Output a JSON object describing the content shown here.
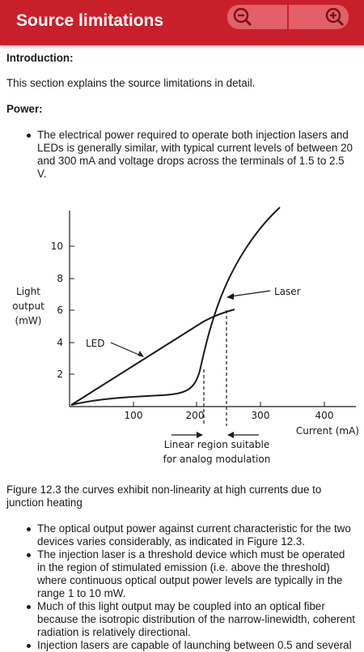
{
  "app_bar": {
    "title": "Source limitations",
    "zoom_out_icon": "zoom-out-magnifier",
    "zoom_in_icon": "zoom-in-magnifier",
    "bar_color": "#c8202a"
  },
  "intro": {
    "heading": "Introduction:",
    "text": "This section explains the source limitations in detail."
  },
  "power": {
    "heading": "Power:",
    "bullet": "The electrical power required to operate both injection lasers and LEDs is generally similar, with typical current levels of between 20 and 300 mA and voltage drops across the terminals of 1.5 to 2.5 V."
  },
  "figure": {
    "ylabel_line1": "Light",
    "ylabel_line2": "output",
    "ylabel_line3": "(mW)",
    "xlabel": "Current (mA)",
    "label_laser": "Laser",
    "label_led": "LED",
    "annotation_line1": "Linear region suitable",
    "annotation_line2": "for analog modulation",
    "y_ticks": [
      "2",
      "4",
      "6",
      "8",
      "10"
    ],
    "x_ticks": [
      "100",
      "200",
      "300",
      "400"
    ],
    "caption": "Figure 12.3 the curves exhibit non-linearity at high currents due to junction heating"
  },
  "bullets": [
    "The optical output power against current characteristic for the two devices varies considerably, as indicated in Figure 12.3.",
    "The injection laser is a threshold device which must be operated in the region of stimulated emission (i.e. above the threshold) where continuous optical output power levels are typically in the range 1 to 10 mW.",
    "Much of this light output may be coupled into an optical fiber because the isotropic distribution of the narrow-linewidth, coherent radiation is relatively directional.",
    "Injection lasers are capable of launching between 0.5 and several"
  ]
}
